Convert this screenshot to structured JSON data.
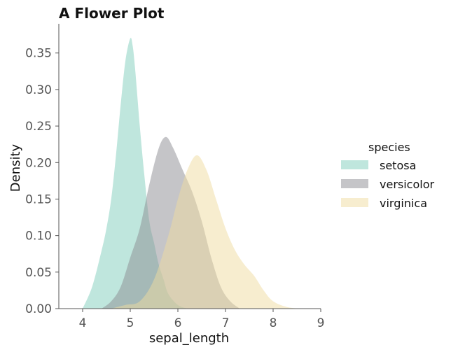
{
  "chart_data": {
    "type": "area",
    "title": "A Flower Plot",
    "xlabel": "sepal_length",
    "ylabel": "Density",
    "xlim": [
      3.5,
      9.0
    ],
    "ylim": [
      0,
      0.39
    ],
    "xticks": [
      4,
      5,
      6,
      7,
      8,
      9
    ],
    "yticks": [
      0.0,
      0.05,
      0.1,
      0.15,
      0.2,
      0.25,
      0.3,
      0.35
    ],
    "ytick_labels": [
      "0.00",
      "0.05",
      "0.10",
      "0.15",
      "0.20",
      "0.25",
      "0.30",
      "0.35"
    ],
    "grid": false,
    "legend": {
      "title": "species",
      "position": "right"
    },
    "series": [
      {
        "name": "setosa",
        "color": "#7fcdbb",
        "x": [
          4.0,
          4.2,
          4.4,
          4.5,
          4.6,
          4.7,
          4.8,
          4.9,
          5.0,
          5.05,
          5.1,
          5.2,
          5.3,
          5.4,
          5.5,
          5.6,
          5.7,
          5.8,
          6.0,
          6.2
        ],
        "y": [
          0.0,
          0.03,
          0.08,
          0.11,
          0.15,
          0.21,
          0.28,
          0.34,
          0.37,
          0.36,
          0.33,
          0.25,
          0.18,
          0.12,
          0.09,
          0.06,
          0.04,
          0.02,
          0.005,
          0.0
        ]
      },
      {
        "name": "versicolor",
        "color": "#8c8c92",
        "x": [
          4.4,
          4.6,
          4.8,
          5.0,
          5.2,
          5.4,
          5.6,
          5.75,
          5.9,
          6.1,
          6.3,
          6.5,
          6.7,
          6.9,
          7.1,
          7.3
        ],
        "y": [
          0.0,
          0.01,
          0.03,
          0.07,
          0.11,
          0.17,
          0.22,
          0.235,
          0.22,
          0.19,
          0.16,
          0.12,
          0.07,
          0.03,
          0.01,
          0.0
        ]
      },
      {
        "name": "virginica",
        "color": "#f0dba0",
        "x": [
          4.6,
          4.9,
          5.2,
          5.5,
          5.8,
          6.0,
          6.2,
          6.4,
          6.6,
          6.8,
          7.0,
          7.2,
          7.4,
          7.6,
          7.8,
          8.0,
          8.3,
          8.6
        ],
        "y": [
          0.0,
          0.005,
          0.01,
          0.04,
          0.1,
          0.15,
          0.19,
          0.21,
          0.19,
          0.15,
          0.11,
          0.08,
          0.06,
          0.045,
          0.025,
          0.01,
          0.002,
          0.0
        ]
      }
    ]
  }
}
